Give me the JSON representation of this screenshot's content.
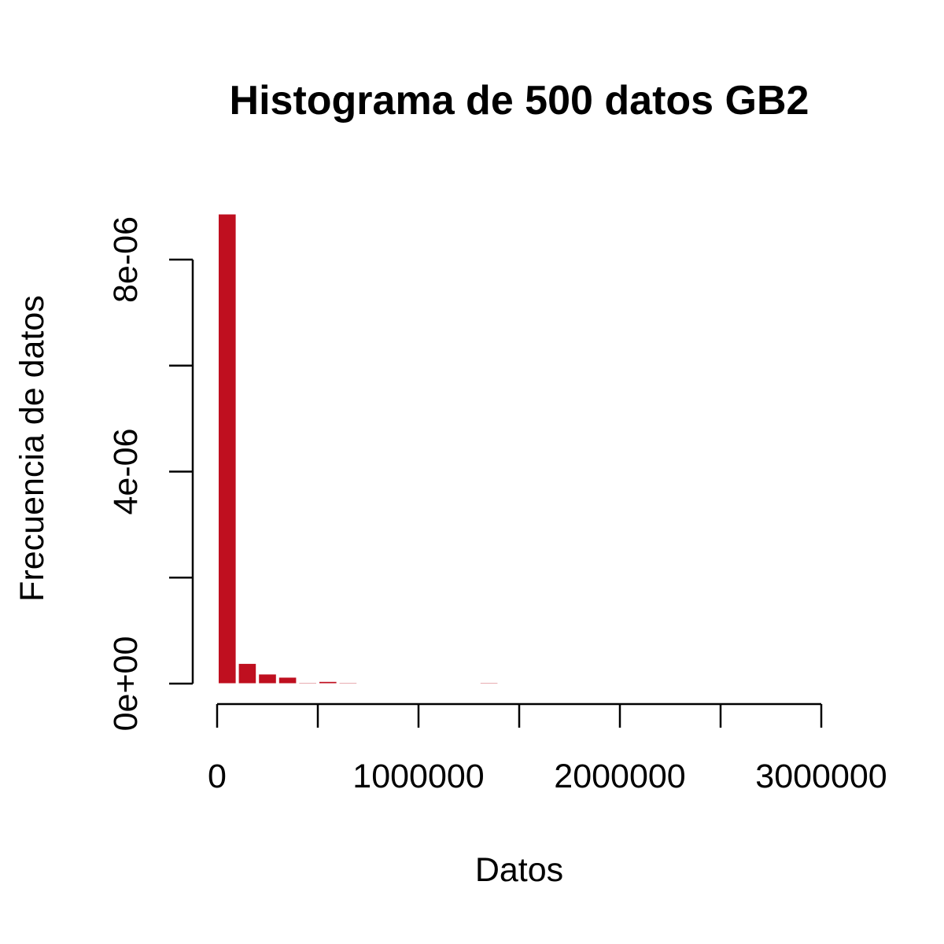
{
  "chart_data": {
    "type": "bar",
    "title": "Histograma de 500 datos GB2",
    "xlabel": "Datos",
    "ylabel": "Frecuencia de datos",
    "xlim": [
      0,
      3000000
    ],
    "ylim": [
      0,
      8.9e-06
    ],
    "bar_color": "#BF0F1F",
    "bin_width": 100000,
    "bins": [
      {
        "x0": 0,
        "x1": 100000,
        "density": 8.86e-06
      },
      {
        "x0": 100000,
        "x1": 200000,
        "density": 3.8e-07
      },
      {
        "x0": 200000,
        "x1": 300000,
        "density": 1.8e-07
      },
      {
        "x0": 300000,
        "x1": 400000,
        "density": 1.2e-07
      },
      {
        "x0": 400000,
        "x1": 500000,
        "density": 2e-08
      },
      {
        "x0": 500000,
        "x1": 600000,
        "density": 4e-08
      },
      {
        "x0": 600000,
        "x1": 700000,
        "density": 2e-08
      },
      {
        "x0": 700000,
        "x1": 800000,
        "density": 0
      },
      {
        "x0": 800000,
        "x1": 900000,
        "density": 0
      },
      {
        "x0": 900000,
        "x1": 1000000,
        "density": 0
      },
      {
        "x0": 1000000,
        "x1": 1100000,
        "density": 0
      },
      {
        "x0": 1100000,
        "x1": 1200000,
        "density": 0
      },
      {
        "x0": 1200000,
        "x1": 1300000,
        "density": 0
      },
      {
        "x0": 1300000,
        "x1": 1400000,
        "density": 2e-08
      }
    ],
    "x_ticks": [
      0,
      500000,
      1000000,
      1500000,
      2000000,
      2500000,
      3000000
    ],
    "x_tick_labels": [
      "0",
      "",
      "1000000",
      "",
      "2000000",
      "",
      "3000000"
    ],
    "y_ticks": [
      0,
      2e-06,
      4e-06,
      6e-06,
      8e-06
    ],
    "y_tick_labels": [
      "0e+00",
      "",
      "4e-06",
      "",
      "8e-06"
    ]
  }
}
